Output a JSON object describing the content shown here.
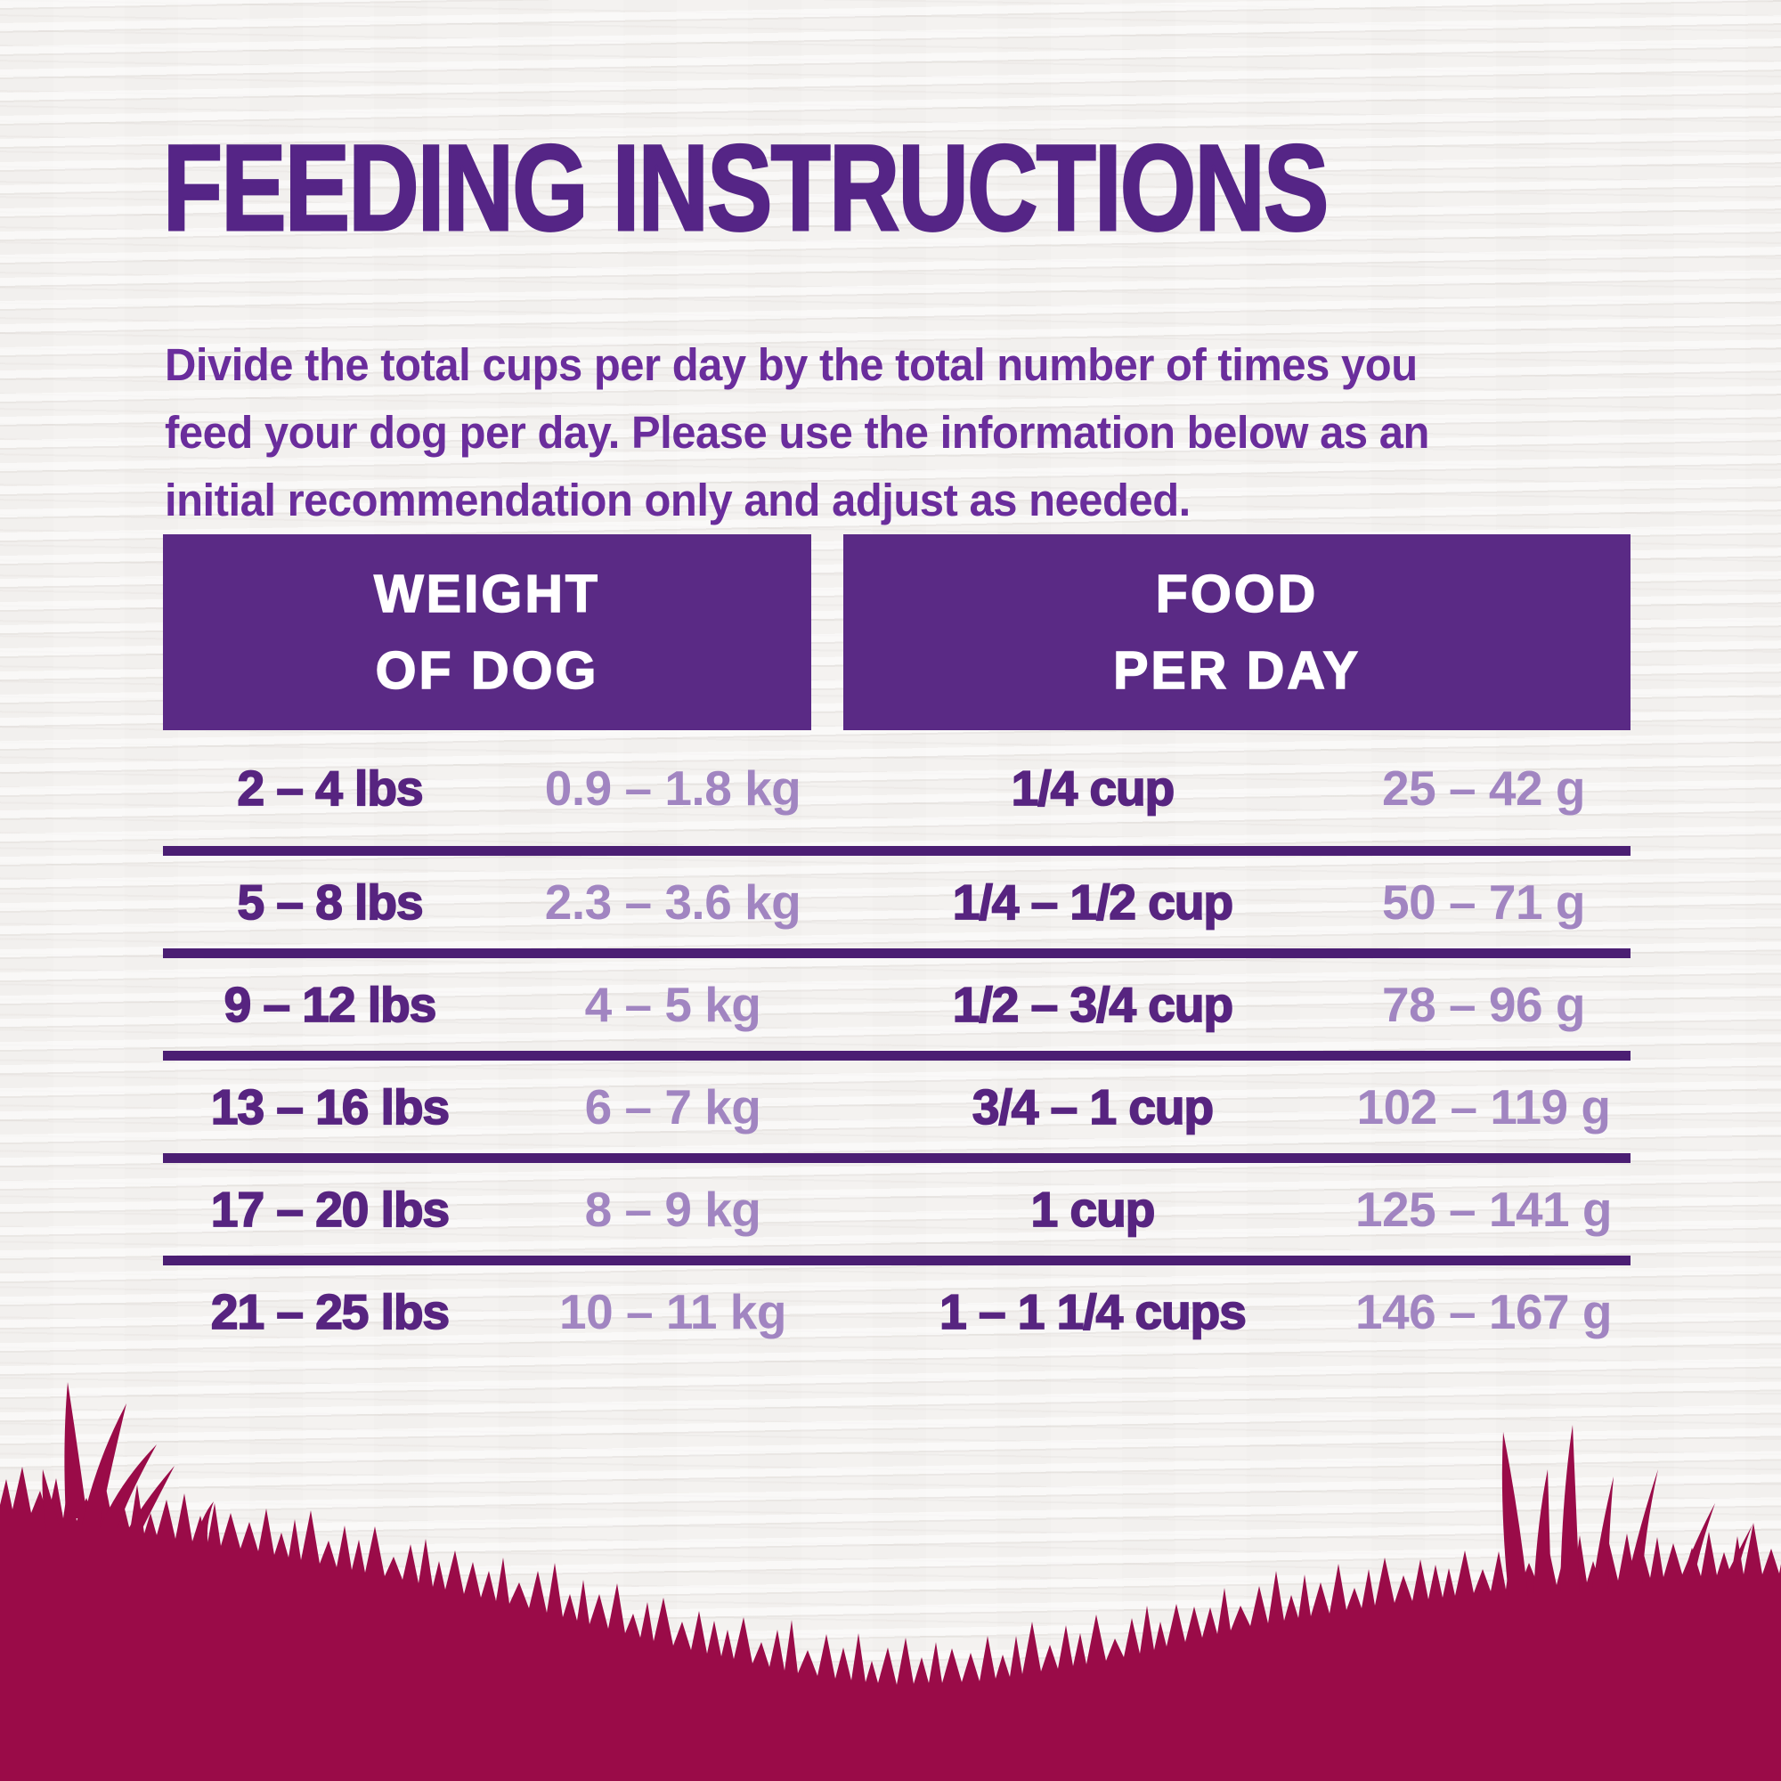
{
  "title": {
    "text": "FEEDING INSTRUCTIONS"
  },
  "intro": {
    "lines": [
      "Divide the total cups per day by the total number of times you",
      "feed your dog per day. Please use the information below as an",
      "initial recommendation only and adjust as needed."
    ]
  },
  "table": {
    "headers": [
      {
        "line1": "WEIGHT",
        "line2": "OF DOG"
      },
      {
        "line1": "FOOD",
        "line2": "PER DAY"
      }
    ],
    "rows": [
      {
        "lbs": "2 – 4 lbs",
        "kg": "0.9 – 1.8 kg",
        "cups": "1/4 cup",
        "grams": "25 – 42 g"
      },
      {
        "lbs": "5 – 8 lbs",
        "kg": "2.3 – 3.6 kg",
        "cups": "1/4 – 1/2 cup",
        "grams": "50 – 71 g"
      },
      {
        "lbs": "9 – 12 lbs",
        "kg": "4 – 5 kg",
        "cups": "1/2 – 3/4 cup",
        "grams": "78 – 96 g"
      },
      {
        "lbs": "13 – 16 lbs",
        "kg": "6 – 7 kg",
        "cups": "3/4 – 1 cup",
        "grams": "102 – 119 g"
      },
      {
        "lbs": "17 – 20 lbs",
        "kg": "8 – 9 kg",
        "cups": "1 cup",
        "grams": "125 – 141 g"
      },
      {
        "lbs": "21 – 25 lbs",
        "kg": "10 – 11 kg",
        "cups": "1 – 1 1/4 cups",
        "grams": "146 – 167 g"
      }
    ]
  },
  "colors": {
    "background": "#f4f2f0",
    "title": "#552586",
    "intro": "#6a2d9c",
    "header_bg": "#5a2a85",
    "header_text": "#ffffff",
    "row_bold": "#572480",
    "row_light": "#a185c1",
    "divider": "#4b1e73",
    "grass": "#9a0b48"
  }
}
